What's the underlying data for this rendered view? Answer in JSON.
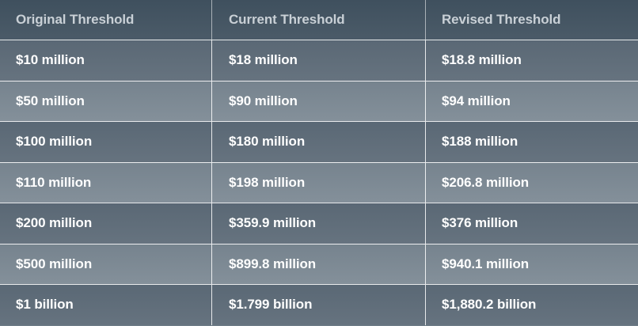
{
  "table": {
    "headers": [
      "Original Threshold",
      "Current Threshold",
      "Revised Threshold"
    ],
    "rows": [
      [
        "$10 million",
        "$18 million",
        "$18.8 million"
      ],
      [
        "$50 million",
        "$90 million",
        "$94 million"
      ],
      [
        "$100 million",
        "$180 million",
        "$188 million"
      ],
      [
        "$110 million",
        "$198 million",
        "$206.8 million"
      ],
      [
        "$200 million",
        "$359.9 million",
        "$376 million"
      ],
      [
        "$500 million",
        "$899.8 million",
        "$940.1 million"
      ],
      [
        "$1 billion",
        "$1.799 billion",
        "$1,880.2 billion"
      ]
    ]
  },
  "colors": {
    "header_bg": "#44545f",
    "row_dark": "#5f6d79",
    "row_light": "#7d8a94",
    "header_text": "#c9d0d6",
    "cell_text": "#ffffff"
  }
}
